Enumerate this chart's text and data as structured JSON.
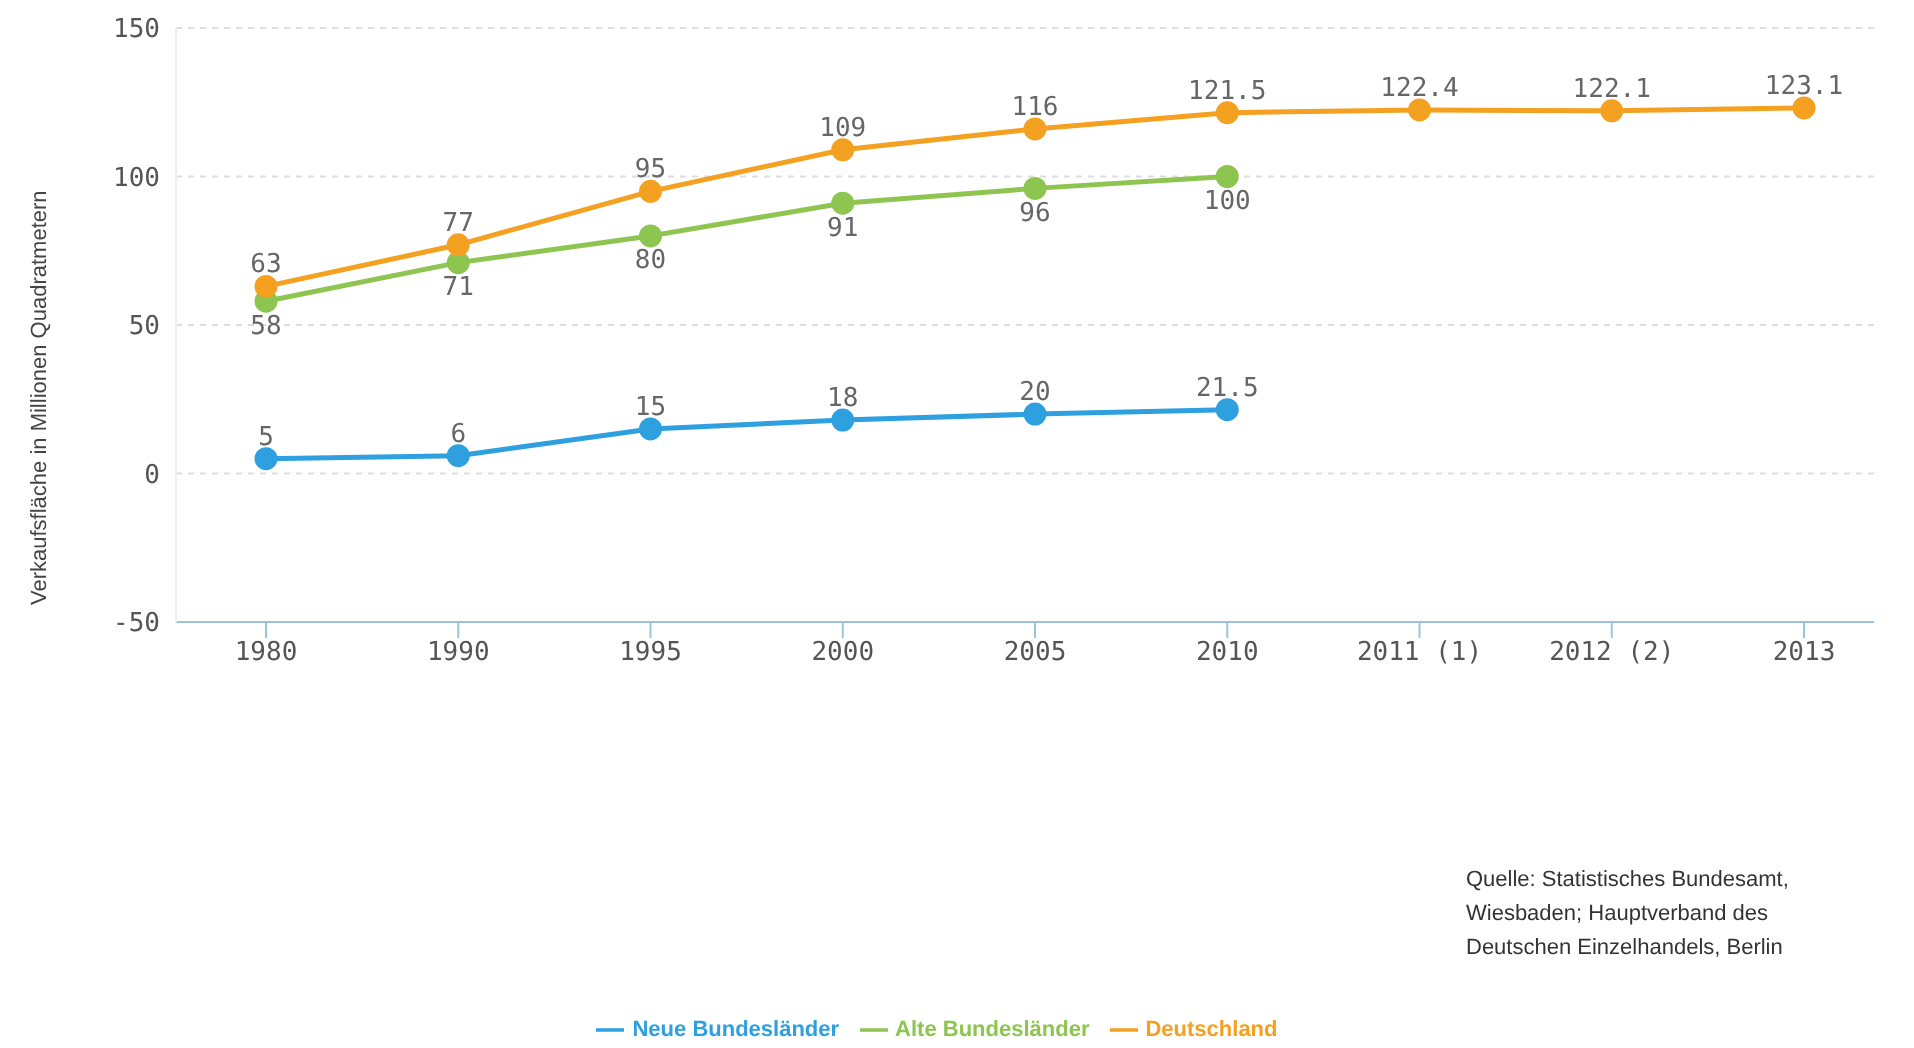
{
  "chart_data": {
    "type": "line",
    "ylabel": "Verkaufsfläche in Millionen Quadratmetern",
    "categories": [
      "1980",
      "1990",
      "1995",
      "2000",
      "2005",
      "2010",
      "2011 (1)",
      "2012 (2)",
      "2013"
    ],
    "series": [
      {
        "name": "Neue Bundesländer",
        "color": "#2ea0e0",
        "values": [
          5,
          6,
          15,
          18,
          20,
          21.5,
          null,
          null,
          null
        ]
      },
      {
        "name": "Alte Bundesländer",
        "color": "#8dc550",
        "values": [
          58,
          71,
          80,
          91,
          96,
          100,
          null,
          null,
          null
        ]
      },
      {
        "name": "Deutschland",
        "color": "#f4a020",
        "values": [
          63,
          77,
          95,
          109,
          116,
          121.5,
          122.4,
          122.1,
          123.1
        ]
      }
    ],
    "ylim": [
      -50,
      150
    ],
    "yticks": [
      -50,
      0,
      50,
      100,
      150
    ],
    "grid": "y",
    "legend": "bottom",
    "marker": "circle",
    "line_style": "solid",
    "data_labels": true,
    "annotations": [
      "Quelle: Statistisches Bundesamt, Wiesbaden; Hauptverband des Deutschen Einzelhandels, Berlin"
    ]
  }
}
